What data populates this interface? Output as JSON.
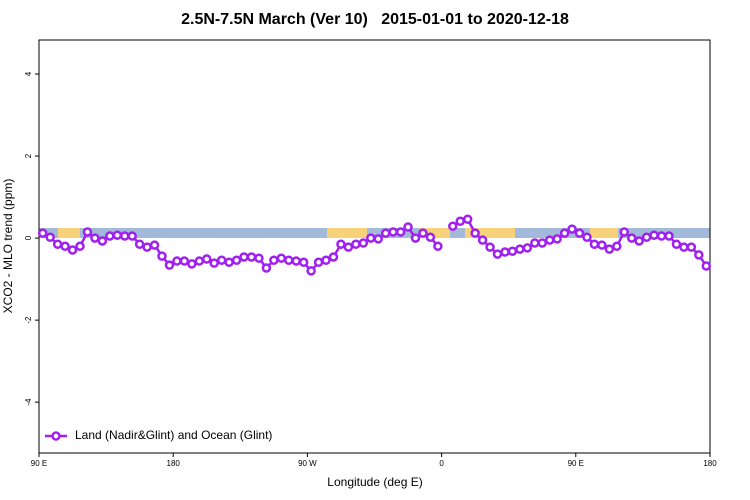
{
  "chart_data": {
    "type": "line",
    "title": "2.5N-7.5N March (Ver 10)   2015-01-01 to 2020-12-18",
    "x_label": "Longitude (deg E)",
    "y_label": "XCO2 - MLO trend (ppm)",
    "xlim": [
      90,
      540
    ],
    "xticks": [
      {
        "value": 90,
        "label": "90 E"
      },
      {
        "value": 180,
        "label": "180"
      },
      {
        "value": 270,
        "label": "90 W"
      },
      {
        "value": 360,
        "label": "0"
      },
      {
        "value": 450,
        "label": "90 E"
      },
      {
        "value": 540,
        "label": "180"
      }
    ],
    "ylim": [
      -5.24,
      4.83
    ],
    "yticks": [
      -4,
      -2,
      0,
      2,
      4
    ],
    "legend": "bottom left",
    "x": [
      92.5,
      97.5,
      102.5,
      107.5,
      112.5,
      117.5,
      122.5,
      127.5,
      132.5,
      137.5,
      142.5,
      147.5,
      152.5,
      157.5,
      162.5,
      167.5,
      172.5,
      177.5,
      182.5,
      187.5,
      192.5,
      197.5,
      202.5,
      207.5,
      212.5,
      217.5,
      222.5,
      227.5,
      232.5,
      237.5,
      242.5,
      247.5,
      252.5,
      257.5,
      262.5,
      267.5,
      272.5,
      277.5,
      282.5,
      287.5,
      292.5,
      297.5,
      302.5,
      307.5,
      312.5,
      317.5,
      322.5,
      327.5,
      332.5,
      337.5,
      342.5,
      347.5,
      352.5,
      357.5,
      362.5,
      367.5,
      372.5,
      377.5,
      382.5,
      387.5,
      392.5,
      397.5,
      402.5,
      407.5,
      412.5,
      417.5,
      422.5,
      427.5,
      432.5,
      437.5,
      442.5,
      447.5,
      452.5,
      457.5,
      462.5,
      467.5,
      472.5,
      477.5,
      482.5,
      487.5,
      492.5,
      497.5,
      502.5,
      507.5,
      512.5,
      517.5,
      522.5,
      527.5,
      532.5,
      537.5
    ],
    "series": [
      {
        "name": "Land (Nadir&Glint) and Ocean (Glint)",
        "color": "#a020f0",
        "values": [
          0.12,
          0.02,
          -0.15,
          -0.2,
          -0.29,
          -0.2,
          0.15,
          0,
          -0.07,
          0.05,
          0.07,
          0.05,
          0.05,
          -0.15,
          -0.22,
          -0.17,
          -0.44,
          -0.66,
          -0.56,
          -0.56,
          -0.63,
          -0.56,
          -0.51,
          -0.61,
          -0.54,
          -0.59,
          -0.54,
          -0.46,
          -0.46,
          -0.49,
          -0.73,
          -0.54,
          -0.49,
          -0.54,
          -0.56,
          -0.59,
          -0.8,
          -0.59,
          -0.54,
          -0.46,
          -0.15,
          -0.22,
          -0.15,
          -0.12,
          0,
          -0.02,
          0.12,
          0.15,
          0.15,
          0.27,
          0,
          0.12,
          0.02,
          -0.2,
          null,
          0.29,
          0.41,
          0.46,
          0.12,
          -0.05,
          -0.22,
          -0.39,
          -0.34,
          -0.32,
          -0.27,
          -0.24,
          -0.12,
          -0.12,
          -0.05,
          -0.02,
          0.12,
          0.22,
          0.12,
          0.02,
          -0.15,
          -0.17,
          -0.27,
          -0.2,
          0.15,
          0,
          -0.07,
          0.02,
          0.07,
          0.05,
          0.05,
          -0.15,
          -0.22,
          -0.22,
          -0.41,
          -0.68
        ]
      }
    ]
  }
}
